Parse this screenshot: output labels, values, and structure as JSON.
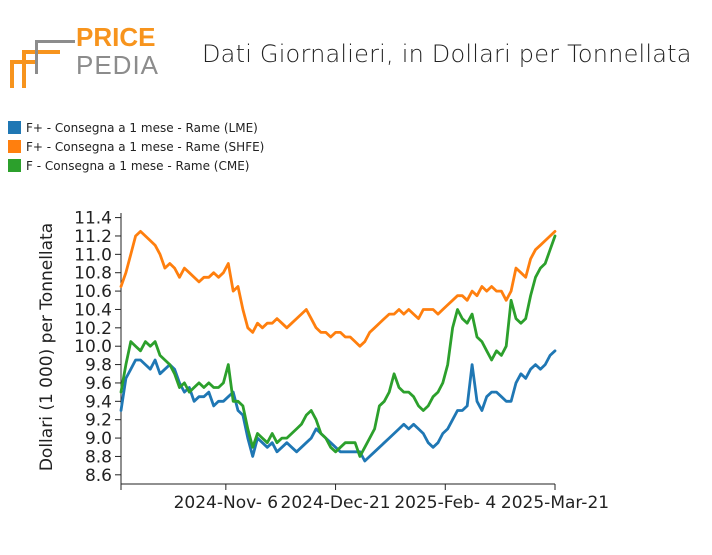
{
  "logo": {
    "word1": "PRICE",
    "word2": "PEDIA"
  },
  "title": "Dati Giornalieri, in Dollari per Tonnellata",
  "colors": {
    "lme": "#1f77b4",
    "shfe": "#ff7f0e",
    "cme": "#2ca02c",
    "orange_logo": "#f7941d",
    "gray_logo": "#8c8c8c"
  },
  "chart_data": {
    "type": "line",
    "title": "Dati Giornalieri, in Dollari per Tonnellata",
    "xlabel": "",
    "ylabel": "Dollari (1 000) per Tonnellata",
    "ylim": [
      8.5,
      11.45
    ],
    "yticks": [
      8.6,
      8.8,
      9.0,
      9.2,
      9.4,
      9.6,
      9.8,
      10.0,
      10.2,
      10.4,
      10.6,
      10.8,
      11.0,
      11.2,
      11.4
    ],
    "ytick_labels": [
      "8.6",
      "8.8",
      "9.0",
      "9.2",
      "9.4",
      "9.6",
      "9.8",
      "10.0",
      "10.2",
      "10.4",
      "10.6",
      "10.8",
      "11.0",
      "11.2",
      "11.4"
    ],
    "xlim": [
      "2024-09-24",
      "2025-03-21"
    ],
    "xticks": [
      "2024-11-06",
      "2024-12-21",
      "2025-02-04",
      "2025-03-21"
    ],
    "xtick_labels": [
      "2024-Nov- 6",
      "2024-Dec-21",
      "2025-Feb- 4",
      "2025-Mar-21"
    ],
    "grid": false,
    "legend_position": "top-left",
    "series": [
      {
        "name": "F+ - Consegna a 1 mese - Rame (LME)",
        "color": "#1f77b4",
        "points": [
          [
            "2024-09-24",
            9.3
          ],
          [
            "2024-09-26",
            9.65
          ],
          [
            "2024-09-28",
            9.75
          ],
          [
            "2024-09-30",
            9.85
          ],
          [
            "2024-10-02",
            9.85
          ],
          [
            "2024-10-04",
            9.8
          ],
          [
            "2024-10-06",
            9.75
          ],
          [
            "2024-10-08",
            9.85
          ],
          [
            "2024-10-10",
            9.7
          ],
          [
            "2024-10-12",
            9.75
          ],
          [
            "2024-10-14",
            9.8
          ],
          [
            "2024-10-16",
            9.75
          ],
          [
            "2024-10-18",
            9.6
          ],
          [
            "2024-10-20",
            9.5
          ],
          [
            "2024-10-22",
            9.55
          ],
          [
            "2024-10-24",
            9.4
          ],
          [
            "2024-10-26",
            9.45
          ],
          [
            "2024-10-28",
            9.45
          ],
          [
            "2024-10-30",
            9.5
          ],
          [
            "2024-11-01",
            9.35
          ],
          [
            "2024-11-03",
            9.4
          ],
          [
            "2024-11-05",
            9.4
          ],
          [
            "2024-11-07",
            9.45
          ],
          [
            "2024-11-09",
            9.5
          ],
          [
            "2024-11-11",
            9.3
          ],
          [
            "2024-11-13",
            9.25
          ],
          [
            "2024-11-15",
            9.0
          ],
          [
            "2024-11-17",
            8.8
          ],
          [
            "2024-11-19",
            9.0
          ],
          [
            "2024-11-21",
            8.95
          ],
          [
            "2024-11-23",
            8.9
          ],
          [
            "2024-11-25",
            8.95
          ],
          [
            "2024-11-27",
            8.85
          ],
          [
            "2024-11-29",
            8.9
          ],
          [
            "2024-12-01",
            8.95
          ],
          [
            "2024-12-03",
            8.9
          ],
          [
            "2024-12-05",
            8.85
          ],
          [
            "2024-12-07",
            8.9
          ],
          [
            "2024-12-09",
            8.95
          ],
          [
            "2024-12-11",
            9.0
          ],
          [
            "2024-12-13",
            9.1
          ],
          [
            "2024-12-15",
            9.05
          ],
          [
            "2024-12-17",
            9.0
          ],
          [
            "2024-12-19",
            8.95
          ],
          [
            "2024-12-21",
            8.9
          ],
          [
            "2024-12-23",
            8.85
          ],
          [
            "2024-12-25",
            8.85
          ],
          [
            "2024-12-27",
            8.85
          ],
          [
            "2024-12-29",
            8.85
          ],
          [
            "2024-12-31",
            8.85
          ],
          [
            "2025-01-02",
            8.75
          ],
          [
            "2025-01-04",
            8.8
          ],
          [
            "2025-01-06",
            8.85
          ],
          [
            "2025-01-08",
            8.9
          ],
          [
            "2025-01-10",
            8.95
          ],
          [
            "2025-01-12",
            9.0
          ],
          [
            "2025-01-14",
            9.05
          ],
          [
            "2025-01-16",
            9.1
          ],
          [
            "2025-01-18",
            9.15
          ],
          [
            "2025-01-20",
            9.1
          ],
          [
            "2025-01-22",
            9.15
          ],
          [
            "2025-01-24",
            9.1
          ],
          [
            "2025-01-26",
            9.05
          ],
          [
            "2025-01-28",
            8.95
          ],
          [
            "2025-01-30",
            8.9
          ],
          [
            "2025-02-01",
            8.95
          ],
          [
            "2025-02-03",
            9.05
          ],
          [
            "2025-02-05",
            9.1
          ],
          [
            "2025-02-07",
            9.2
          ],
          [
            "2025-02-09",
            9.3
          ],
          [
            "2025-02-11",
            9.3
          ],
          [
            "2025-02-13",
            9.35
          ],
          [
            "2025-02-15",
            9.8
          ],
          [
            "2025-02-17",
            9.4
          ],
          [
            "2025-02-19",
            9.3
          ],
          [
            "2025-02-21",
            9.45
          ],
          [
            "2025-02-23",
            9.5
          ],
          [
            "2025-02-25",
            9.5
          ],
          [
            "2025-02-27",
            9.45
          ],
          [
            "2025-03-01",
            9.4
          ],
          [
            "2025-03-03",
            9.4
          ],
          [
            "2025-03-05",
            9.6
          ],
          [
            "2025-03-07",
            9.7
          ],
          [
            "2025-03-09",
            9.65
          ],
          [
            "2025-03-11",
            9.75
          ],
          [
            "2025-03-13",
            9.8
          ],
          [
            "2025-03-15",
            9.75
          ],
          [
            "2025-03-17",
            9.8
          ],
          [
            "2025-03-19",
            9.9
          ],
          [
            "2025-03-21",
            9.95
          ]
        ]
      },
      {
        "name": "F+ - Consegna a 1 mese - Rame (SHFE)",
        "color": "#ff7f0e",
        "points": [
          [
            "2024-09-24",
            10.65
          ],
          [
            "2024-09-26",
            10.8
          ],
          [
            "2024-09-28",
            11.0
          ],
          [
            "2024-09-30",
            11.2
          ],
          [
            "2024-10-02",
            11.25
          ],
          [
            "2024-10-04",
            11.2
          ],
          [
            "2024-10-06",
            11.15
          ],
          [
            "2024-10-08",
            11.1
          ],
          [
            "2024-10-10",
            11.0
          ],
          [
            "2024-10-12",
            10.85
          ],
          [
            "2024-10-14",
            10.9
          ],
          [
            "2024-10-16",
            10.85
          ],
          [
            "2024-10-18",
            10.75
          ],
          [
            "2024-10-20",
            10.85
          ],
          [
            "2024-10-22",
            10.8
          ],
          [
            "2024-10-24",
            10.75
          ],
          [
            "2024-10-26",
            10.7
          ],
          [
            "2024-10-28",
            10.75
          ],
          [
            "2024-10-30",
            10.75
          ],
          [
            "2024-11-01",
            10.8
          ],
          [
            "2024-11-03",
            10.75
          ],
          [
            "2024-11-05",
            10.8
          ],
          [
            "2024-11-07",
            10.9
          ],
          [
            "2024-11-09",
            10.6
          ],
          [
            "2024-11-11",
            10.65
          ],
          [
            "2024-11-13",
            10.4
          ],
          [
            "2024-11-15",
            10.2
          ],
          [
            "2024-11-17",
            10.15
          ],
          [
            "2024-11-19",
            10.25
          ],
          [
            "2024-11-21",
            10.2
          ],
          [
            "2024-11-23",
            10.25
          ],
          [
            "2024-11-25",
            10.25
          ],
          [
            "2024-11-27",
            10.3
          ],
          [
            "2024-11-29",
            10.25
          ],
          [
            "2024-12-01",
            10.2
          ],
          [
            "2024-12-03",
            10.25
          ],
          [
            "2024-12-05",
            10.3
          ],
          [
            "2024-12-07",
            10.35
          ],
          [
            "2024-12-09",
            10.4
          ],
          [
            "2024-12-11",
            10.3
          ],
          [
            "2024-12-13",
            10.2
          ],
          [
            "2024-12-15",
            10.15
          ],
          [
            "2024-12-17",
            10.15
          ],
          [
            "2024-12-19",
            10.1
          ],
          [
            "2024-12-21",
            10.15
          ],
          [
            "2024-12-23",
            10.15
          ],
          [
            "2024-12-25",
            10.1
          ],
          [
            "2024-12-27",
            10.1
          ],
          [
            "2024-12-29",
            10.05
          ],
          [
            "2024-12-31",
            10.0
          ],
          [
            "2025-01-02",
            10.05
          ],
          [
            "2025-01-04",
            10.15
          ],
          [
            "2025-01-06",
            10.2
          ],
          [
            "2025-01-08",
            10.25
          ],
          [
            "2025-01-10",
            10.3
          ],
          [
            "2025-01-12",
            10.35
          ],
          [
            "2025-01-14",
            10.35
          ],
          [
            "2025-01-16",
            10.4
          ],
          [
            "2025-01-18",
            10.35
          ],
          [
            "2025-01-20",
            10.4
          ],
          [
            "2025-01-22",
            10.35
          ],
          [
            "2025-01-24",
            10.3
          ],
          [
            "2025-01-26",
            10.4
          ],
          [
            "2025-01-28",
            10.4
          ],
          [
            "2025-01-30",
            10.4
          ],
          [
            "2025-02-01",
            10.35
          ],
          [
            "2025-02-03",
            10.4
          ],
          [
            "2025-02-05",
            10.45
          ],
          [
            "2025-02-07",
            10.5
          ],
          [
            "2025-02-09",
            10.55
          ],
          [
            "2025-02-11",
            10.55
          ],
          [
            "2025-02-13",
            10.5
          ],
          [
            "2025-02-15",
            10.6
          ],
          [
            "2025-02-17",
            10.55
          ],
          [
            "2025-02-19",
            10.65
          ],
          [
            "2025-02-21",
            10.6
          ],
          [
            "2025-02-23",
            10.65
          ],
          [
            "2025-02-25",
            10.6
          ],
          [
            "2025-02-27",
            10.6
          ],
          [
            "2025-03-01",
            10.5
          ],
          [
            "2025-03-03",
            10.6
          ],
          [
            "2025-03-05",
            10.85
          ],
          [
            "2025-03-07",
            10.8
          ],
          [
            "2025-03-09",
            10.75
          ],
          [
            "2025-03-11",
            10.95
          ],
          [
            "2025-03-13",
            11.05
          ],
          [
            "2025-03-15",
            11.1
          ],
          [
            "2025-03-17",
            11.15
          ],
          [
            "2025-03-19",
            11.2
          ],
          [
            "2025-03-21",
            11.25
          ]
        ]
      },
      {
        "name": "F - Consegna a 1 mese - Rame (CME)",
        "color": "#2ca02c",
        "points": [
          [
            "2024-09-24",
            9.5
          ],
          [
            "2024-09-26",
            9.8
          ],
          [
            "2024-09-28",
            10.05
          ],
          [
            "2024-09-30",
            10.0
          ],
          [
            "2024-10-02",
            9.95
          ],
          [
            "2024-10-04",
            10.05
          ],
          [
            "2024-10-06",
            10.0
          ],
          [
            "2024-10-08",
            10.05
          ],
          [
            "2024-10-10",
            9.9
          ],
          [
            "2024-10-12",
            9.85
          ],
          [
            "2024-10-14",
            9.8
          ],
          [
            "2024-10-16",
            9.7
          ],
          [
            "2024-10-18",
            9.55
          ],
          [
            "2024-10-20",
            9.6
          ],
          [
            "2024-10-22",
            9.5
          ],
          [
            "2024-10-24",
            9.55
          ],
          [
            "2024-10-26",
            9.6
          ],
          [
            "2024-10-28",
            9.55
          ],
          [
            "2024-10-30",
            9.6
          ],
          [
            "2024-11-01",
            9.55
          ],
          [
            "2024-11-03",
            9.55
          ],
          [
            "2024-11-05",
            9.6
          ],
          [
            "2024-11-07",
            9.8
          ],
          [
            "2024-11-09",
            9.4
          ],
          [
            "2024-11-11",
            9.4
          ],
          [
            "2024-11-13",
            9.35
          ],
          [
            "2024-11-15",
            9.1
          ],
          [
            "2024-11-17",
            8.9
          ],
          [
            "2024-11-19",
            9.05
          ],
          [
            "2024-11-21",
            9.0
          ],
          [
            "2024-11-23",
            8.95
          ],
          [
            "2024-11-25",
            9.05
          ],
          [
            "2024-11-27",
            8.95
          ],
          [
            "2024-11-29",
            9.0
          ],
          [
            "2024-12-01",
            9.0
          ],
          [
            "2024-12-03",
            9.05
          ],
          [
            "2024-12-05",
            9.1
          ],
          [
            "2024-12-07",
            9.15
          ],
          [
            "2024-12-09",
            9.25
          ],
          [
            "2024-12-11",
            9.3
          ],
          [
            "2024-12-13",
            9.2
          ],
          [
            "2024-12-15",
            9.05
          ],
          [
            "2024-12-17",
            9.0
          ],
          [
            "2024-12-19",
            8.9
          ],
          [
            "2024-12-21",
            8.85
          ],
          [
            "2024-12-23",
            8.9
          ],
          [
            "2024-12-25",
            8.95
          ],
          [
            "2024-12-27",
            8.95
          ],
          [
            "2024-12-29",
            8.95
          ],
          [
            "2024-12-31",
            8.8
          ],
          [
            "2025-01-02",
            8.9
          ],
          [
            "2025-01-04",
            9.0
          ],
          [
            "2025-01-06",
            9.1
          ],
          [
            "2025-01-08",
            9.35
          ],
          [
            "2025-01-10",
            9.4
          ],
          [
            "2025-01-12",
            9.5
          ],
          [
            "2025-01-14",
            9.7
          ],
          [
            "2025-01-16",
            9.55
          ],
          [
            "2025-01-18",
            9.5
          ],
          [
            "2025-01-20",
            9.5
          ],
          [
            "2025-01-22",
            9.45
          ],
          [
            "2025-01-24",
            9.35
          ],
          [
            "2025-01-26",
            9.3
          ],
          [
            "2025-01-28",
            9.35
          ],
          [
            "2025-01-30",
            9.45
          ],
          [
            "2025-02-01",
            9.5
          ],
          [
            "2025-02-03",
            9.6
          ],
          [
            "2025-02-05",
            9.8
          ],
          [
            "2025-02-07",
            10.2
          ],
          [
            "2025-02-09",
            10.4
          ],
          [
            "2025-02-11",
            10.3
          ],
          [
            "2025-02-13",
            10.25
          ],
          [
            "2025-02-15",
            10.35
          ],
          [
            "2025-02-17",
            10.1
          ],
          [
            "2025-02-19",
            10.05
          ],
          [
            "2025-02-21",
            9.95
          ],
          [
            "2025-02-23",
            9.85
          ],
          [
            "2025-02-25",
            9.95
          ],
          [
            "2025-02-27",
            9.9
          ],
          [
            "2025-03-01",
            10.0
          ],
          [
            "2025-03-03",
            10.5
          ],
          [
            "2025-03-05",
            10.3
          ],
          [
            "2025-03-07",
            10.25
          ],
          [
            "2025-03-09",
            10.3
          ],
          [
            "2025-03-11",
            10.55
          ],
          [
            "2025-03-13",
            10.75
          ],
          [
            "2025-03-15",
            10.85
          ],
          [
            "2025-03-17",
            10.9
          ],
          [
            "2025-03-19",
            11.05
          ],
          [
            "2025-03-21",
            11.2
          ]
        ]
      }
    ]
  }
}
